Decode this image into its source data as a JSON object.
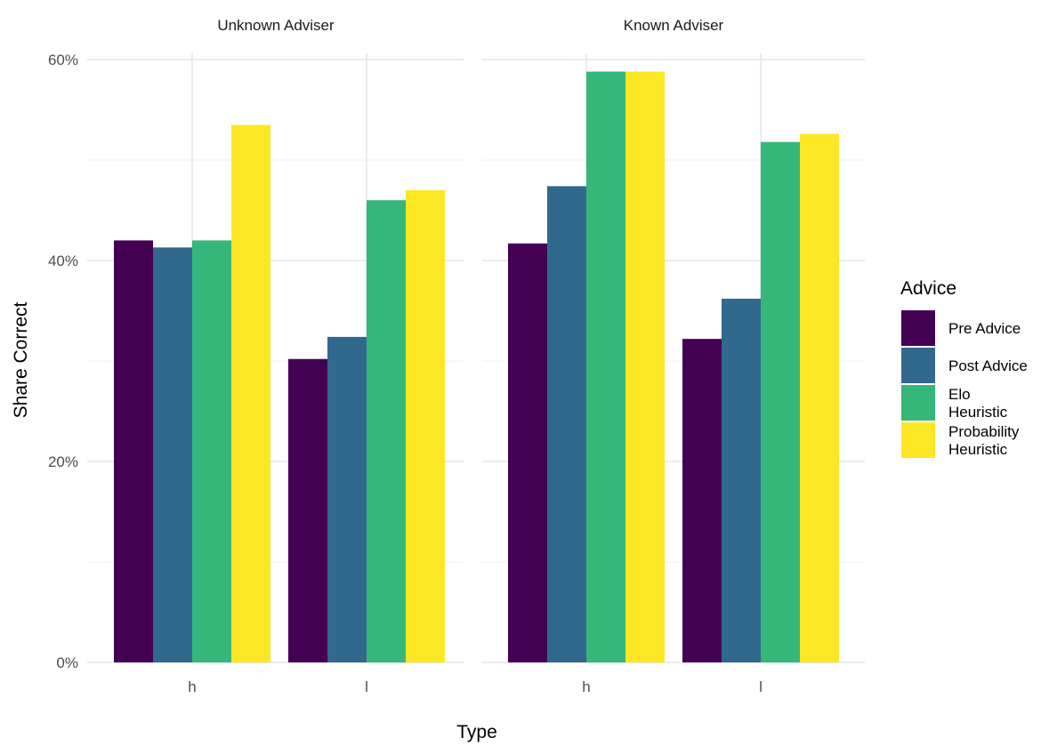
{
  "chart_data": {
    "type": "bar",
    "xlabel": "Type",
    "ylabel": "Share Correct",
    "ylim": [
      0,
      0.6
    ],
    "y_ticks": [
      "0%",
      "20%",
      "40%",
      "60%"
    ],
    "categories": [
      "h",
      "l"
    ],
    "grid": true,
    "legend": {
      "title": "Advice",
      "placement": "right",
      "entries": [
        {
          "lines": [
            "Pre Advice"
          ],
          "color": "#440154"
        },
        {
          "lines": [
            "Post Advice"
          ],
          "color": "#31688E"
        },
        {
          "lines": [
            "Elo",
            "Heuristic"
          ],
          "color": "#35B779"
        },
        {
          "lines": [
            "Probability",
            "Heuristic"
          ],
          "color": "#FDE725"
        }
      ]
    },
    "panels": [
      {
        "title": "Unknown Adviser",
        "series": [
          {
            "name": "Pre Advice",
            "values": [
              0.42,
              0.302
            ]
          },
          {
            "name": "Post Advice",
            "values": [
              0.413,
              0.324
            ]
          },
          {
            "name": "Elo Heuristic",
            "values": [
              0.42,
              0.46
            ]
          },
          {
            "name": "Probability Heuristic",
            "values": [
              0.535,
              0.47
            ]
          }
        ]
      },
      {
        "title": "Known Adviser",
        "series": [
          {
            "name": "Pre Advice",
            "values": [
              0.417,
              0.322
            ]
          },
          {
            "name": "Post Advice",
            "values": [
              0.474,
              0.362
            ]
          },
          {
            "name": "Elo Heuristic",
            "values": [
              0.588,
              0.518
            ]
          },
          {
            "name": "Probability Heuristic",
            "values": [
              0.588,
              0.526
            ]
          }
        ]
      }
    ]
  }
}
